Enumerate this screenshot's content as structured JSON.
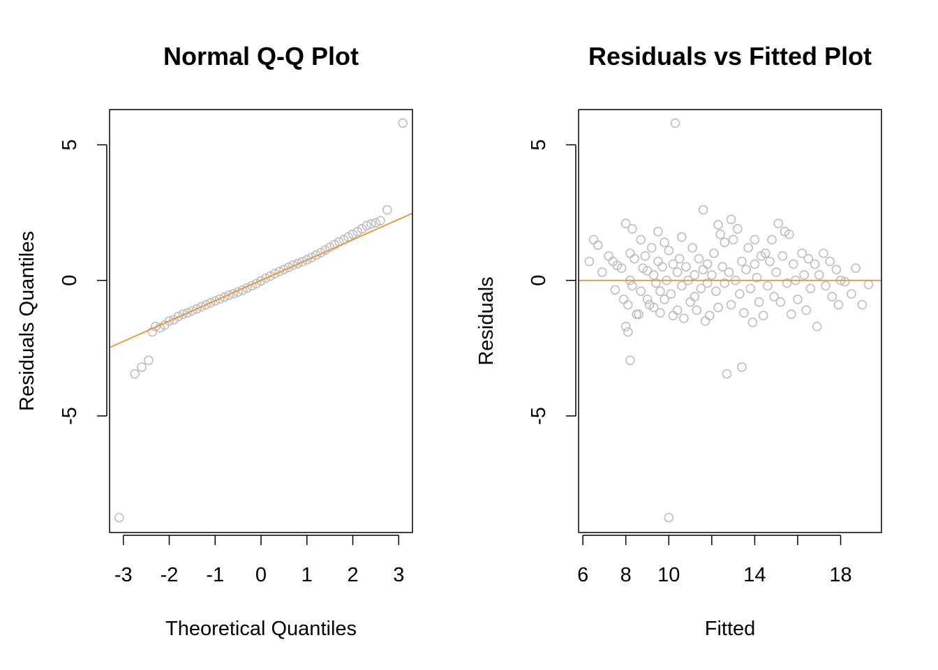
{
  "colors": {
    "points": "#bebebe",
    "reference_line": "#f28c28",
    "axes": "#000000",
    "background": "#ffffff"
  },
  "chart_data": [
    {
      "type": "scatter",
      "title": "Normal Q-Q Plot",
      "xlabel": "Theoretical Quantiles",
      "ylabel": "Residuals Quantiles",
      "xlim": [
        -3.3,
        3.3
      ],
      "ylim": [
        -9.3,
        6.3
      ],
      "x_ticks": [
        -3,
        -2,
        -1,
        0,
        1,
        2,
        3
      ],
      "y_ticks": [
        -5,
        0,
        5
      ],
      "grid": false,
      "reference_line": {
        "intercept": 0,
        "slope": 0.75
      },
      "points": [
        [
          -3.09,
          -8.75
        ],
        [
          -2.75,
          -3.45
        ],
        [
          -2.6,
          -3.2
        ],
        [
          -2.45,
          -2.95
        ],
        [
          -2.37,
          -1.9
        ],
        [
          -2.3,
          -1.7
        ],
        [
          -2.2,
          -1.75
        ],
        [
          -2.1,
          -1.65
        ],
        [
          -2.0,
          -1.5
        ],
        [
          -1.9,
          -1.45
        ],
        [
          -1.8,
          -1.33
        ],
        [
          -1.7,
          -1.25
        ],
        [
          -1.6,
          -1.2
        ],
        [
          -1.5,
          -1.12
        ],
        [
          -1.4,
          -1.05
        ],
        [
          -1.3,
          -0.97
        ],
        [
          -1.2,
          -0.9
        ],
        [
          -1.1,
          -0.83
        ],
        [
          -1.0,
          -0.76
        ],
        [
          -0.9,
          -0.69
        ],
        [
          -0.8,
          -0.62
        ],
        [
          -0.7,
          -0.55
        ],
        [
          -0.6,
          -0.49
        ],
        [
          -0.5,
          -0.43
        ],
        [
          -0.4,
          -0.36
        ],
        [
          -0.3,
          -0.28
        ],
        [
          -0.2,
          -0.2
        ],
        [
          -0.1,
          -0.12
        ],
        [
          0.0,
          -0.02
        ],
        [
          0.1,
          0.08
        ],
        [
          0.2,
          0.16
        ],
        [
          0.3,
          0.25
        ],
        [
          0.4,
          0.33
        ],
        [
          0.5,
          0.4
        ],
        [
          0.6,
          0.48
        ],
        [
          0.7,
          0.56
        ],
        [
          0.8,
          0.62
        ],
        [
          0.9,
          0.69
        ],
        [
          1.0,
          0.76
        ],
        [
          1.1,
          0.84
        ],
        [
          1.2,
          0.93
        ],
        [
          1.3,
          1.02
        ],
        [
          1.4,
          1.12
        ],
        [
          1.5,
          1.22
        ],
        [
          1.6,
          1.32
        ],
        [
          1.7,
          1.42
        ],
        [
          1.8,
          1.5
        ],
        [
          1.9,
          1.6
        ],
        [
          2.0,
          1.7
        ],
        [
          2.1,
          1.8
        ],
        [
          2.2,
          1.9
        ],
        [
          2.3,
          2.02
        ],
        [
          2.4,
          2.08
        ],
        [
          2.5,
          2.12
        ],
        [
          2.6,
          2.2
        ],
        [
          2.75,
          2.6
        ],
        [
          3.09,
          5.8
        ]
      ]
    },
    {
      "type": "scatter",
      "title": "Residuals vs Fitted Plot",
      "xlabel": "Fitted",
      "ylabel": "Residuals",
      "xlim": [
        5.8,
        19.9
      ],
      "ylim": [
        -9.3,
        6.3
      ],
      "x_ticks": [
        6,
        8,
        10,
        12,
        14,
        16,
        18
      ],
      "x_tick_labels": [
        "6",
        "8",
        "10",
        "",
        "14",
        "",
        "18"
      ],
      "y_ticks": [
        -5,
        0,
        5
      ],
      "grid": false,
      "reference_line": {
        "h": 0
      },
      "points": [
        [
          6.3,
          0.7
        ],
        [
          6.5,
          1.5
        ],
        [
          6.7,
          1.3
        ],
        [
          6.9,
          0.3
        ],
        [
          7.2,
          0.9
        ],
        [
          7.4,
          0.7
        ],
        [
          7.5,
          -0.35
        ],
        [
          7.6,
          0.55
        ],
        [
          7.8,
          0.45
        ],
        [
          7.9,
          -0.7
        ],
        [
          8.0,
          2.1
        ],
        [
          8.0,
          -1.7
        ],
        [
          8.1,
          -1.9
        ],
        [
          8.1,
          -0.9
        ],
        [
          8.2,
          -2.95
        ],
        [
          8.2,
          0.0
        ],
        [
          8.2,
          1.0
        ],
        [
          8.3,
          1.9
        ],
        [
          8.3,
          -0.2
        ],
        [
          8.4,
          0.8
        ],
        [
          8.5,
          -1.25
        ],
        [
          8.6,
          -1.25
        ],
        [
          8.7,
          1.5
        ],
        [
          8.7,
          -0.4
        ],
        [
          8.8,
          0.45
        ],
        [
          8.9,
          0.9
        ],
        [
          9.0,
          0.35
        ],
        [
          9.0,
          -0.7
        ],
        [
          9.1,
          -0.9
        ],
        [
          9.2,
          1.2
        ],
        [
          9.3,
          0.2
        ],
        [
          9.3,
          -1.0
        ],
        [
          9.4,
          -0.1
        ],
        [
          9.5,
          1.8
        ],
        [
          9.5,
          0.7
        ],
        [
          9.6,
          -1.2
        ],
        [
          9.6,
          -0.4
        ],
        [
          9.7,
          0.5
        ],
        [
          9.8,
          -0.7
        ],
        [
          9.8,
          1.4
        ],
        [
          9.9,
          0.0
        ],
        [
          10.0,
          -8.75
        ],
        [
          10.0,
          1.1
        ],
        [
          10.1,
          -0.5
        ],
        [
          10.2,
          -1.3
        ],
        [
          10.2,
          0.6
        ],
        [
          10.3,
          5.8
        ],
        [
          10.4,
          0.3
        ],
        [
          10.4,
          -1.1
        ],
        [
          10.5,
          0.8
        ],
        [
          10.6,
          -0.2
        ],
        [
          10.6,
          1.6
        ],
        [
          10.7,
          -1.4
        ],
        [
          10.8,
          0.5
        ],
        [
          10.9,
          0.0
        ],
        [
          11.0,
          -0.8
        ],
        [
          11.1,
          1.2
        ],
        [
          11.2,
          0.2
        ],
        [
          11.2,
          -0.6
        ],
        [
          11.3,
          -1.1
        ],
        [
          11.4,
          0.8
        ],
        [
          11.5,
          -0.3
        ],
        [
          11.6,
          2.6
        ],
        [
          11.6,
          0.4
        ],
        [
          11.7,
          -1.5
        ],
        [
          11.8,
          -0.1
        ],
        [
          11.8,
          0.6
        ],
        [
          11.9,
          -1.3
        ],
        [
          12.0,
          0.2
        ],
        [
          12.1,
          1.0
        ],
        [
          12.2,
          -0.4
        ],
        [
          12.3,
          2.05
        ],
        [
          12.3,
          -1.0
        ],
        [
          12.4,
          1.7
        ],
        [
          12.5,
          0.5
        ],
        [
          12.6,
          -0.1
        ],
        [
          12.6,
          1.4
        ],
        [
          12.7,
          -3.45
        ],
        [
          12.8,
          0.3
        ],
        [
          12.9,
          2.25
        ],
        [
          12.9,
          -0.9
        ],
        [
          13.0,
          1.5
        ],
        [
          13.1,
          0.0
        ],
        [
          13.2,
          1.9
        ],
        [
          13.3,
          -0.5
        ],
        [
          13.4,
          0.7
        ],
        [
          13.4,
          -3.2
        ],
        [
          13.5,
          -1.2
        ],
        [
          13.6,
          0.4
        ],
        [
          13.7,
          1.2
        ],
        [
          13.8,
          -0.3
        ],
        [
          13.9,
          -1.55
        ],
        [
          14.0,
          1.5
        ],
        [
          14.0,
          0.6
        ],
        [
          14.1,
          0.1
        ],
        [
          14.2,
          -0.8
        ],
        [
          14.3,
          0.9
        ],
        [
          14.4,
          -1.3
        ],
        [
          14.5,
          1.0
        ],
        [
          14.6,
          -0.2
        ],
        [
          14.7,
          0.7
        ],
        [
          14.8,
          1.5
        ],
        [
          14.9,
          -0.6
        ],
        [
          15.0,
          0.3
        ],
        [
          15.1,
          2.1
        ],
        [
          15.2,
          -0.8
        ],
        [
          15.3,
          0.9
        ],
        [
          15.4,
          1.8
        ],
        [
          15.5,
          -0.1
        ],
        [
          15.6,
          1.7
        ],
        [
          15.7,
          -1.25
        ],
        [
          15.8,
          0.6
        ],
        [
          15.9,
          0.0
        ],
        [
          16.0,
          -0.7
        ],
        [
          16.2,
          1.0
        ],
        [
          16.3,
          0.2
        ],
        [
          16.4,
          -1.1
        ],
        [
          16.5,
          0.8
        ],
        [
          16.6,
          -0.3
        ],
        [
          16.8,
          0.6
        ],
        [
          16.9,
          -1.7
        ],
        [
          17.0,
          0.2
        ],
        [
          17.2,
          1.0
        ],
        [
          17.3,
          -0.2
        ],
        [
          17.5,
          0.7
        ],
        [
          17.6,
          -0.6
        ],
        [
          17.8,
          0.4
        ],
        [
          17.9,
          -0.9
        ],
        [
          18.0,
          0.0
        ],
        [
          18.2,
          -0.05
        ],
        [
          18.5,
          -0.5
        ],
        [
          18.7,
          0.45
        ],
        [
          19.0,
          -0.9
        ],
        [
          19.3,
          -0.15
        ]
      ]
    }
  ]
}
